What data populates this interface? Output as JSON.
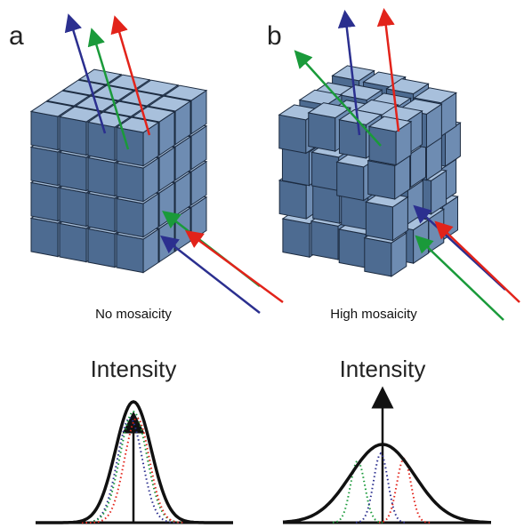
{
  "panels": [
    {
      "label": "a",
      "caption": "No mosaicity",
      "plot_title": "Intensity"
    },
    {
      "label": "b",
      "caption": "High mosaicity",
      "plot_title": "Intensity"
    }
  ]
}
